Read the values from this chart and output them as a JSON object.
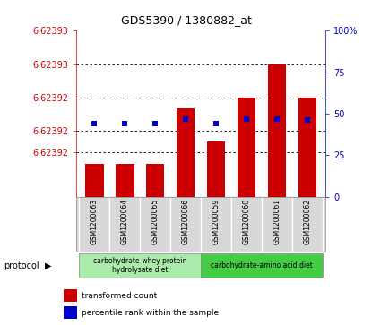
{
  "title": "GDS5390 / 1380882_at",
  "samples": [
    "GSM1200063",
    "GSM1200064",
    "GSM1200065",
    "GSM1200066",
    "GSM1200059",
    "GSM1200060",
    "GSM1200061",
    "GSM1200062"
  ],
  "transformed_count": [
    6.623919,
    6.623919,
    6.623919,
    6.623924,
    6.623921,
    6.623925,
    6.623928,
    6.623925
  ],
  "baseline": 6.623916,
  "percentile_rank": [
    44,
    44,
    44,
    47,
    44,
    47,
    47,
    46
  ],
  "ylim_left": [
    6.623916,
    6.623931
  ],
  "ylim_right": [
    0,
    100
  ],
  "ytick_positions": [
    6.62392,
    6.623922,
    6.623925,
    6.623928,
    6.623931
  ],
  "ytick_labels": [
    "6.62392",
    "6.62392",
    "6.62392",
    "6.62393",
    "6.62393"
  ],
  "ytick_gridlines": [
    6.62392,
    6.623922,
    6.623925,
    6.623928
  ],
  "right_yticks": [
    0,
    25,
    50,
    75,
    100
  ],
  "right_ytick_labels": [
    "0",
    "25",
    "50",
    "75",
    "100%"
  ],
  "protocol_groups": [
    {
      "label": "carbohydrate-whey protein\nhydrolysate diet",
      "indices": [
        0,
        3
      ],
      "color": "#aaeaaa"
    },
    {
      "label": "carbohydrate-amino acid diet",
      "indices": [
        4,
        7
      ],
      "color": "#44cc44"
    }
  ],
  "bar_color": "#cc0000",
  "dot_color": "#0000cc",
  "bg_color": "#d8d8d8",
  "plot_bg": "#ffffff",
  "left_axis_color": "#cc0000",
  "right_axis_color": "#0000bb",
  "bar_width": 0.6
}
